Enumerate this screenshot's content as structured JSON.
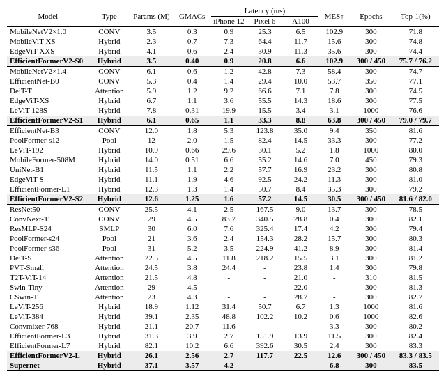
{
  "header": {
    "model": "Model",
    "type": "Type",
    "params": "Params (M)",
    "gmacs": "GMACs",
    "latency": "Latency (ms)",
    "lat1": "iPhone 12",
    "lat2": "Pixel 6",
    "lat3": "A100",
    "mes": "MES↑",
    "epochs": "Epochs",
    "top1": "Top-1(%)"
  },
  "groups": [
    {
      "rows": [
        {
          "model": "MobileNetV2×1.0",
          "type": "CONV",
          "params": "3.5",
          "gmacs": "0.3",
          "l1": "0.9",
          "l2": "25.3",
          "l3": "6.5",
          "mes": "102.9",
          "epochs": "300",
          "top1": "71.8"
        },
        {
          "model": "MobileViT-XS",
          "type": "Hybrid",
          "params": "2.3",
          "gmacs": "0.7",
          "l1": "7.3",
          "l2": "64.4",
          "l3": "11.7",
          "mes": "15.6",
          "epochs": "300",
          "top1": "74.8"
        },
        {
          "model": "EdgeViT-XXS",
          "type": "Hybrid",
          "params": "4.1",
          "gmacs": "0.6",
          "l1": "2.4",
          "l2": "30.9",
          "l3": "11.3",
          "mes": "35.6",
          "epochs": "300",
          "top1": "74.4"
        },
        {
          "model": "EfficientFormerV2-S0",
          "type": "Hybrid",
          "params": "3.5",
          "gmacs": "0.40",
          "l1": "0.9",
          "l2": "20.8",
          "l3": "6.6",
          "mes": "102.9",
          "epochs": "300 / 450",
          "top1": "75.7 / 76.2",
          "bold": true,
          "shade": true
        }
      ]
    },
    {
      "rows": [
        {
          "model": "MobileNetV2×1.4",
          "type": "CONV",
          "params": "6.1",
          "gmacs": "0.6",
          "l1": "1.2",
          "l2": "42.8",
          "l3": "7.3",
          "mes": "58.4",
          "epochs": "300",
          "top1": "74.7"
        },
        {
          "model": "EfficientNet-B0",
          "type": "CONV",
          "params": "5.3",
          "gmacs": "0.4",
          "l1": "1.4",
          "l2": "29.4",
          "l3": "10.0",
          "mes": "53.7",
          "epochs": "350",
          "top1": "77.1"
        },
        {
          "model": "DeiT-T",
          "type": "Attention",
          "params": "5.9",
          "gmacs": "1.2",
          "l1": "9.2",
          "l2": "66.6",
          "l3": "7.1",
          "mes": "7.8",
          "epochs": "300",
          "top1": "74.5"
        },
        {
          "model": "EdgeViT-XS",
          "type": "Hybrid",
          "params": "6.7",
          "gmacs": "1.1",
          "l1": "3.6",
          "l2": "55.5",
          "l3": "14.3",
          "mes": "18.6",
          "epochs": "300",
          "top1": "77.5"
        },
        {
          "model": "LeViT-128S",
          "type": "Hybrid",
          "params": "7.8",
          "gmacs": "0.31",
          "l1": "19.9",
          "l2": "15.5",
          "l3": "3.4",
          "mes": "3.1",
          "epochs": "1000",
          "top1": "76.6"
        },
        {
          "model": "EfficientFormerV2-S1",
          "type": "Hybrid",
          "params": "6.1",
          "gmacs": "0.65",
          "l1": "1.1",
          "l2": "33.3",
          "l3": "8.8",
          "mes": "63.8",
          "epochs": "300 / 450",
          "top1": "79.0 / 79.7",
          "bold": true,
          "shade": true
        }
      ]
    },
    {
      "rows": [
        {
          "model": "EfficientNet-B3",
          "type": "CONV",
          "params": "12.0",
          "gmacs": "1.8",
          "l1": "5.3",
          "l2": "123.8",
          "l3": "35.0",
          "mes": "9.4",
          "epochs": "350",
          "top1": "81.6"
        },
        {
          "model": "PoolFormer-s12",
          "type": "Pool",
          "params": "12",
          "gmacs": "2.0",
          "l1": "1.5",
          "l2": "82.4",
          "l3": "14.5",
          "mes": "33.3",
          "epochs": "300",
          "top1": "77.2"
        },
        {
          "model": "LeViT-192",
          "type": "Hybrid",
          "params": "10.9",
          "gmacs": "0.66",
          "l1": "29.6",
          "l2": "30.1",
          "l3": "5.2",
          "mes": "1.8",
          "epochs": "1000",
          "top1": "80.0"
        },
        {
          "model": "MobileFormer-508M",
          "type": "Hybrid",
          "params": "14.0",
          "gmacs": "0.51",
          "l1": "6.6",
          "l2": "55.2",
          "l3": "14.6",
          "mes": "7.0",
          "epochs": "450",
          "top1": "79.3"
        },
        {
          "model": "UniNet-B1",
          "type": "Hybrid",
          "params": "11.5",
          "gmacs": "1.1",
          "l1": "2.2",
          "l2": "57.7",
          "l3": "16.9",
          "mes": "23.2",
          "epochs": "300",
          "top1": "80.8"
        },
        {
          "model": "EdgeViT-S",
          "type": "Hybrid",
          "params": "11.1",
          "gmacs": "1.9",
          "l1": "4.6",
          "l2": "92.5",
          "l3": "24.2",
          "mes": "11.3",
          "epochs": "300",
          "top1": "81.0"
        },
        {
          "model": "EfficientFormer-L1",
          "type": "Hybrid",
          "params": "12.3",
          "gmacs": "1.3",
          "l1": "1.4",
          "l2": "50.7",
          "l3": "8.4",
          "mes": "35.3",
          "epochs": "300",
          "top1": "79.2"
        },
        {
          "model": "EfficientFormerV2-S2",
          "type": "Hybrid",
          "params": "12.6",
          "gmacs": "1.25",
          "l1": "1.6",
          "l2": "57.2",
          "l3": "14.5",
          "mes": "30.5",
          "epochs": "300 / 450",
          "top1": "81.6 / 82.0",
          "bold": true,
          "shade": true
        }
      ]
    },
    {
      "rows": [
        {
          "model": "ResNet50",
          "type": "CONV",
          "params": "25.5",
          "gmacs": "4.1",
          "l1": "2.5",
          "l2": "167.5",
          "l3": "9.0",
          "mes": "13.7",
          "epochs": "300",
          "top1": "78.5"
        },
        {
          "model": "ConvNext-T",
          "type": "CONV",
          "params": "29",
          "gmacs": "4.5",
          "l1": "83.7",
          "l2": "340.5",
          "l3": "28.8",
          "mes": "0.4",
          "epochs": "300",
          "top1": "82.1"
        },
        {
          "model": "ResMLP-S24",
          "type": "SMLP",
          "params": "30",
          "gmacs": "6.0",
          "l1": "7.6",
          "l2": "325.4",
          "l3": "17.4",
          "mes": "4.2",
          "epochs": "300",
          "top1": "79.4"
        },
        {
          "model": "PoolFormer-s24",
          "type": "Pool",
          "params": "21",
          "gmacs": "3.6",
          "l1": "2.4",
          "l2": "154.3",
          "l3": "28.2",
          "mes": "15.7",
          "epochs": "300",
          "top1": "80.3"
        },
        {
          "model": "PoolFormer-s36",
          "type": "Pool",
          "params": "31",
          "gmacs": "5.2",
          "l1": "3.5",
          "l2": "224.9",
          "l3": "41.2",
          "mes": "8.9",
          "epochs": "300",
          "top1": "81.4"
        },
        {
          "model": "DeiT-S",
          "type": "Attention",
          "params": "22.5",
          "gmacs": "4.5",
          "l1": "11.8",
          "l2": "218.2",
          "l3": "15.5",
          "mes": "3.1",
          "epochs": "300",
          "top1": "81.2"
        },
        {
          "model": "PVT-Small",
          "type": "Attention",
          "params": "24.5",
          "gmacs": "3.8",
          "l1": "24.4",
          "l2": "-",
          "l3": "23.8",
          "mes": "1.4",
          "epochs": "300",
          "top1": "79.8"
        },
        {
          "model": "T2T-ViT-14",
          "type": "Attention",
          "params": "21.5",
          "gmacs": "4.8",
          "l1": "-",
          "l2": "-",
          "l3": "21.0",
          "mes": "-",
          "epochs": "310",
          "top1": "81.5"
        },
        {
          "model": "Swin-Tiny",
          "type": "Attention",
          "params": "29",
          "gmacs": "4.5",
          "l1": "-",
          "l2": "-",
          "l3": "22.0",
          "mes": "-",
          "epochs": "300",
          "top1": "81.3"
        },
        {
          "model": "CSwin-T",
          "type": "Attention",
          "params": "23",
          "gmacs": "4.3",
          "l1": "-",
          "l2": "-",
          "l3": "28.7",
          "mes": "-",
          "epochs": "300",
          "top1": "82.7"
        },
        {
          "model": "LeViT-256",
          "type": "Hybrid",
          "params": "18.9",
          "gmacs": "1.12",
          "l1": "31.4",
          "l2": "50.7",
          "l3": "6.7",
          "mes": "1.3",
          "epochs": "1000",
          "top1": "81.6"
        },
        {
          "model": "LeViT-384",
          "type": "Hybrid",
          "params": "39.1",
          "gmacs": "2.35",
          "l1": "48.8",
          "l2": "102.2",
          "l3": "10.2",
          "mes": "0.6",
          "epochs": "1000",
          "top1": "82.6"
        },
        {
          "model": "Convmixer-768",
          "type": "Hybrid",
          "params": "21.1",
          "gmacs": "20.7",
          "l1": "11.6",
          "l2": "-",
          "l3": "-",
          "mes": "3.3",
          "epochs": "300",
          "top1": "80.2"
        },
        {
          "model": "EfficientFormer-L3",
          "type": "Hybrid",
          "params": "31.3",
          "gmacs": "3.9",
          "l1": "2.7",
          "l2": "151.9",
          "l3": "13.9",
          "mes": "11.5",
          "epochs": "300",
          "top1": "82.4"
        },
        {
          "model": "EfficientFormer-L7",
          "type": "Hybrid",
          "params": "82.1",
          "gmacs": "10.2",
          "l1": "6.6",
          "l2": "392.6",
          "l3": "30.5",
          "mes": "2.4",
          "epochs": "300",
          "top1": "83.3"
        },
        {
          "model": "EfficientFormerV2-L",
          "type": "Hybrid",
          "params": "26.1",
          "gmacs": "2.56",
          "l1": "2.7",
          "l2": "117.7",
          "l3": "22.5",
          "mes": "12.6",
          "epochs": "300 / 450",
          "top1": "83.3 / 83.5",
          "bold": true,
          "shade": true
        },
        {
          "model": "Supernet",
          "type": "Hybrid",
          "params": "37.1",
          "gmacs": "3.57",
          "l1": "4.2",
          "l2": "-",
          "l3": "-",
          "mes": "6.8",
          "epochs": "300",
          "top1": "83.5",
          "bold": true,
          "shade": true
        }
      ]
    }
  ]
}
